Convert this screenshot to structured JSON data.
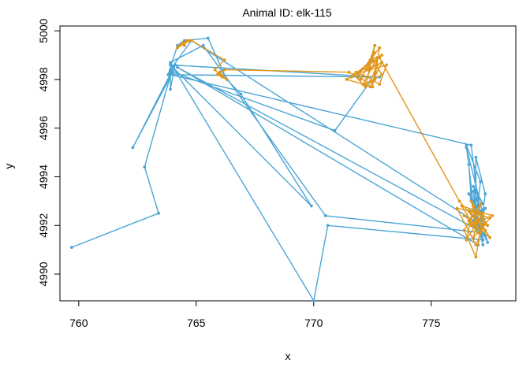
{
  "chart_data": {
    "type": "line",
    "title": "Animal ID: elk-115",
    "xlabel": "x",
    "ylabel": "y",
    "xlim": [
      759.2,
      778.6
    ],
    "ylim": [
      4988.9,
      5000.2
    ],
    "x_ticks": [
      760,
      765,
      770,
      775
    ],
    "y_ticks": [
      4990,
      4992,
      4994,
      4996,
      4998,
      5000
    ],
    "grid": false,
    "legend": "none",
    "series": [
      {
        "color": "#4aa5d6",
        "points": [
          [
            759.7,
            4991.1
          ],
          [
            763.4,
            4992.5
          ],
          [
            762.8,
            4994.4
          ],
          [
            764.0,
            4998.5
          ],
          [
            763.8,
            4998.2
          ],
          [
            764.2,
            4999.4
          ],
          [
            764.5,
            4999.6
          ],
          [
            765.5,
            4999.7
          ],
          [
            766.3,
            4998.0
          ],
          [
            766.9,
            4997.4
          ],
          [
            769.9,
            4992.8
          ],
          [
            763.9,
            4998.6
          ],
          [
            772.8,
            4998.1
          ],
          [
            763.9,
            4998.2
          ],
          [
            776.7,
            4995.3
          ],
          [
            777.2,
            4991.4
          ],
          [
            770.6,
            4992.0
          ],
          [
            770.0,
            4988.9
          ],
          [
            763.9,
            4998.7
          ],
          [
            765.3,
            4999.4
          ],
          [
            770.5,
            4992.4
          ],
          [
            777.2,
            4991.7
          ],
          [
            764.2,
            4998.5
          ],
          [
            777.0,
            4991.2
          ],
          [
            777.3,
            4993.3
          ],
          [
            776.9,
            4994.8
          ],
          [
            776.9,
            4992.2
          ],
          [
            776.6,
            4992.6
          ],
          [
            777.2,
            4992.9
          ],
          [
            776.8,
            4993.6
          ],
          [
            777.4,
            4991.3
          ],
          [
            776.8,
            4992.4
          ],
          [
            777.3,
            4992.7
          ],
          [
            776.9,
            4991.9
          ],
          [
            776.5,
            4995.3
          ],
          [
            777.1,
            4993.8
          ],
          [
            776.9,
            4992.3
          ],
          [
            776.8,
            4993.4
          ],
          [
            777.2,
            4991.2
          ],
          [
            776.7,
            4993.1
          ],
          [
            776.6,
            4994.5
          ],
          [
            776.5,
            4995.2
          ],
          [
            777.3,
            4992.1
          ],
          [
            776.6,
            4993.3
          ],
          [
            777.1,
            4992.6
          ],
          [
            777.3,
            4991.6
          ],
          [
            776.8,
            4992.2
          ],
          [
            764.8,
            4999.6
          ],
          [
            763.9,
            4998.4
          ],
          [
            763.9,
            4997.6
          ],
          [
            764.1,
            4998.6
          ],
          [
            762.3,
            4995.2
          ],
          [
            764.0,
            4998.3
          ],
          [
            770.9,
            4995.9
          ],
          [
            772.4,
            4997.9
          ]
        ]
      },
      {
        "color": "#e0961a",
        "points": [
          [
            764.3,
            4999.4
          ],
          [
            764.6,
            4999.6
          ],
          [
            764.5,
            4999.4
          ],
          [
            764.4,
            4999.5
          ],
          [
            764.7,
            4999.6
          ],
          [
            764.2,
            4999.3
          ],
          [
            764.5,
            4999.5
          ],
          [
            764.8,
            4999.6
          ],
          [
            766.2,
            4998.8
          ],
          [
            765.8,
            4998.4
          ],
          [
            766.1,
            4998.1
          ],
          [
            766.0,
            4998.3
          ],
          [
            766.3,
            4998.0
          ],
          [
            765.9,
            4998.2
          ],
          [
            766.2,
            4998.4
          ],
          [
            771.5,
            4998.3
          ],
          [
            772.0,
            4998.0
          ],
          [
            772.6,
            4999.1
          ],
          [
            772.3,
            4998.4
          ],
          [
            772.9,
            4998.7
          ],
          [
            772.4,
            4997.7
          ],
          [
            771.9,
            4998.2
          ],
          [
            772.8,
            4999.3
          ],
          [
            772.6,
            4998.0
          ],
          [
            772.1,
            4997.8
          ],
          [
            772.7,
            4998.9
          ],
          [
            772.5,
            4997.7
          ],
          [
            771.4,
            4998.0
          ],
          [
            772.9,
            4999.0
          ],
          [
            772.4,
            4998.8
          ],
          [
            772.6,
            4999.4
          ],
          [
            772.2,
            4997.7
          ],
          [
            771.7,
            4998.2
          ],
          [
            773.1,
            4998.6
          ],
          [
            772.8,
            4997.8
          ],
          [
            772.3,
            4998.1
          ],
          [
            771.8,
            4998.3
          ],
          [
            772.7,
            4998.6
          ],
          [
            772.4,
            4997.9
          ],
          [
            772.9,
            4998.2
          ],
          [
            772.5,
            4998.8
          ],
          [
            771.6,
            4998.1
          ],
          [
            772.8,
            4998.9
          ],
          [
            776.2,
            4993.0
          ],
          [
            776.9,
            4992.2
          ],
          [
            777.3,
            4991.8
          ],
          [
            776.6,
            4992.6
          ],
          [
            777.5,
            4992.3
          ],
          [
            776.8,
            4991.5
          ],
          [
            777.1,
            4992.9
          ],
          [
            776.4,
            4991.8
          ],
          [
            776.9,
            4990.7
          ],
          [
            777.2,
            4992.4
          ],
          [
            776.7,
            4992.0
          ],
          [
            777.6,
            4992.4
          ],
          [
            776.3,
            4992.8
          ],
          [
            777.0,
            4991.7
          ],
          [
            776.6,
            4992.2
          ],
          [
            777.4,
            4992.0
          ],
          [
            776.8,
            4992.8
          ],
          [
            776.5,
            4991.4
          ],
          [
            777.2,
            4992.5
          ],
          [
            776.1,
            4992.7
          ],
          [
            776.9,
            4991.2
          ],
          [
            777.3,
            4992.1
          ],
          [
            776.7,
            4993.0
          ],
          [
            777.0,
            4991.9
          ],
          [
            776.4,
            4992.4
          ],
          [
            777.5,
            4991.5
          ],
          [
            776.8,
            4992.6
          ]
        ]
      }
    ]
  }
}
